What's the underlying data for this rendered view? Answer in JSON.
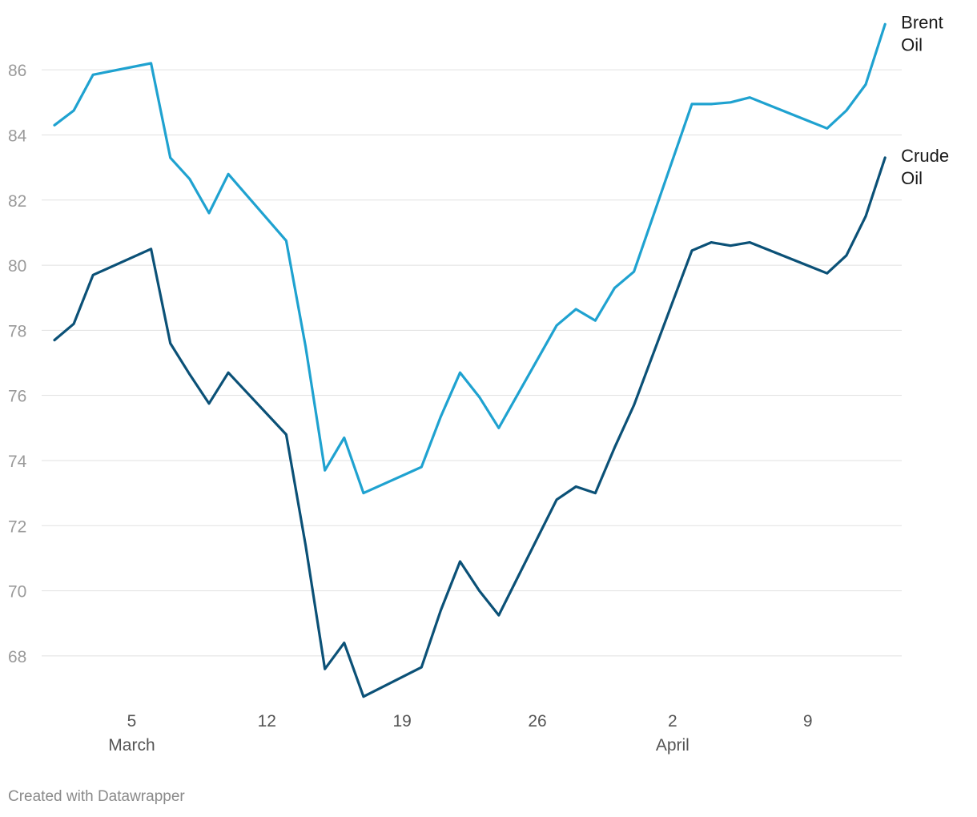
{
  "chart_data": {
    "type": "line",
    "ylim": [
      66.3,
      87.8
    ],
    "yticks": [
      68,
      70,
      72,
      74,
      76,
      78,
      80,
      82,
      84,
      86
    ],
    "xlim": [
      "2024-02-28",
      "2024-04-15"
    ],
    "xticks": [
      {
        "date": "2024-03-05",
        "label": "5",
        "sublabel": "March"
      },
      {
        "date": "2024-03-12",
        "label": "12",
        "sublabel": ""
      },
      {
        "date": "2024-03-19",
        "label": "19",
        "sublabel": ""
      },
      {
        "date": "2024-03-26",
        "label": "26",
        "sublabel": ""
      },
      {
        "date": "2024-04-02",
        "label": "2",
        "sublabel": "April"
      },
      {
        "date": "2024-04-09",
        "label": "9",
        "sublabel": ""
      }
    ],
    "grid": true,
    "series": [
      {
        "name": "Brent Oil",
        "color": "#1fa2d0",
        "label_lines": [
          "Brent",
          "Oil"
        ],
        "points": [
          {
            "x": "2024-03-01",
            "y": 84.3
          },
          {
            "x": "2024-03-02",
            "y": 84.75
          },
          {
            "x": "2024-03-03",
            "y": 85.85
          },
          {
            "x": "2024-03-06",
            "y": 86.2
          },
          {
            "x": "2024-03-07",
            "y": 83.3
          },
          {
            "x": "2024-03-08",
            "y": 82.65
          },
          {
            "x": "2024-03-09",
            "y": 81.6
          },
          {
            "x": "2024-03-10",
            "y": 82.8
          },
          {
            "x": "2024-03-13",
            "y": 80.75
          },
          {
            "x": "2024-03-14",
            "y": 77.5
          },
          {
            "x": "2024-03-15",
            "y": 73.7
          },
          {
            "x": "2024-03-16",
            "y": 74.7
          },
          {
            "x": "2024-03-17",
            "y": 73.0
          },
          {
            "x": "2024-03-20",
            "y": 73.8
          },
          {
            "x": "2024-03-21",
            "y": 75.35
          },
          {
            "x": "2024-03-22",
            "y": 76.7
          },
          {
            "x": "2024-03-23",
            "y": 75.95
          },
          {
            "x": "2024-03-24",
            "y": 75.0
          },
          {
            "x": "2024-03-27",
            "y": 78.15
          },
          {
            "x": "2024-03-28",
            "y": 78.65
          },
          {
            "x": "2024-03-29",
            "y": 78.3
          },
          {
            "x": "2024-03-30",
            "y": 79.3
          },
          {
            "x": "2024-03-31",
            "y": 79.8
          },
          {
            "x": "2024-04-03",
            "y": 84.95
          },
          {
            "x": "2024-04-04",
            "y": 84.95
          },
          {
            "x": "2024-04-05",
            "y": 85.0
          },
          {
            "x": "2024-04-06",
            "y": 85.15
          },
          {
            "x": "2024-04-10",
            "y": 84.2
          },
          {
            "x": "2024-04-11",
            "y": 84.75
          },
          {
            "x": "2024-04-12",
            "y": 85.55
          },
          {
            "x": "2024-04-13",
            "y": 87.4
          }
        ]
      },
      {
        "name": "Crude Oil",
        "color": "#0b5177",
        "label_lines": [
          "Crude",
          "Oil"
        ],
        "points": [
          {
            "x": "2024-03-01",
            "y": 77.7
          },
          {
            "x": "2024-03-02",
            "y": 78.2
          },
          {
            "x": "2024-03-03",
            "y": 79.7
          },
          {
            "x": "2024-03-06",
            "y": 80.5
          },
          {
            "x": "2024-03-07",
            "y": 77.6
          },
          {
            "x": "2024-03-08",
            "y": 76.65
          },
          {
            "x": "2024-03-09",
            "y": 75.75
          },
          {
            "x": "2024-03-10",
            "y": 76.7
          },
          {
            "x": "2024-03-13",
            "y": 74.8
          },
          {
            "x": "2024-03-14",
            "y": 71.4
          },
          {
            "x": "2024-03-15",
            "y": 67.6
          },
          {
            "x": "2024-03-16",
            "y": 68.4
          },
          {
            "x": "2024-03-17",
            "y": 66.75
          },
          {
            "x": "2024-03-20",
            "y": 67.65
          },
          {
            "x": "2024-03-21",
            "y": 69.4
          },
          {
            "x": "2024-03-22",
            "y": 70.9
          },
          {
            "x": "2024-03-23",
            "y": 70.0
          },
          {
            "x": "2024-03-24",
            "y": 69.25
          },
          {
            "x": "2024-03-27",
            "y": 72.8
          },
          {
            "x": "2024-03-28",
            "y": 73.2
          },
          {
            "x": "2024-03-29",
            "y": 73.0
          },
          {
            "x": "2024-03-30",
            "y": 74.4
          },
          {
            "x": "2024-03-31",
            "y": 75.7
          },
          {
            "x": "2024-04-03",
            "y": 80.45
          },
          {
            "x": "2024-04-04",
            "y": 80.7
          },
          {
            "x": "2024-04-05",
            "y": 80.6
          },
          {
            "x": "2024-04-06",
            "y": 80.7
          },
          {
            "x": "2024-04-10",
            "y": 79.75
          },
          {
            "x": "2024-04-11",
            "y": 80.3
          },
          {
            "x": "2024-04-12",
            "y": 81.5
          },
          {
            "x": "2024-04-13",
            "y": 83.3
          }
        ]
      }
    ]
  },
  "footer": {
    "credit": "Created with Datawrapper"
  }
}
